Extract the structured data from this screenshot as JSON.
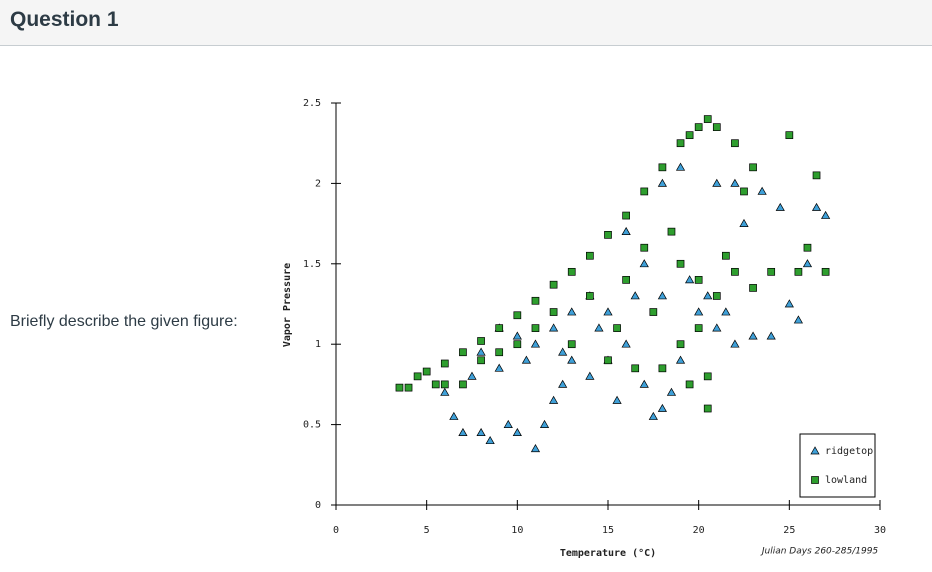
{
  "header": {
    "title": "Question 1"
  },
  "prompt": "Briefly describe the given figure:",
  "chart_data": {
    "type": "scatter",
    "x_label": "Temperature (°C)",
    "y_label": "Vapor Pressure",
    "annotation": "Julian Days 260-285/1995",
    "xlim": [
      0,
      30
    ],
    "ylim": [
      0,
      2.5
    ],
    "xticks": [
      0,
      5,
      10,
      15,
      20,
      25,
      30
    ],
    "yticks": [
      0,
      0.5,
      1,
      1.5,
      2,
      2.5
    ],
    "legend": "lower right",
    "series": [
      {
        "name": "ridgetop",
        "color": "#3fa0d8",
        "marker": "triangle",
        "x": [
          6.5,
          7,
          8,
          8.5,
          9.5,
          10,
          11,
          11.5,
          12,
          12.5,
          6,
          7.5,
          9,
          10.5,
          13,
          14,
          15,
          15.5,
          16,
          17,
          17.5,
          18,
          18.5,
          19,
          20,
          21,
          22,
          23,
          24,
          25,
          25.5,
          26,
          26.5,
          27,
          24.5,
          22.5,
          23.5,
          21,
          22,
          19,
          18,
          16,
          17,
          14,
          13,
          12,
          11,
          15,
          16.5,
          18,
          19.5,
          20.5,
          21.5,
          14.5,
          12.5,
          10,
          8,
          9
        ],
        "y": [
          0.55,
          0.45,
          0.45,
          0.4,
          0.5,
          0.45,
          0.35,
          0.5,
          0.65,
          0.75,
          0.7,
          0.8,
          0.85,
          0.9,
          0.9,
          0.8,
          0.9,
          0.65,
          1.0,
          0.75,
          0.55,
          0.6,
          0.7,
          0.9,
          1.2,
          1.1,
          1.0,
          1.05,
          1.05,
          1.25,
          1.15,
          1.5,
          1.85,
          1.8,
          1.85,
          1.75,
          1.95,
          2.0,
          2.0,
          2.1,
          2.0,
          1.7,
          1.5,
          1.3,
          1.2,
          1.1,
          1.0,
          1.2,
          1.3,
          1.3,
          1.4,
          1.3,
          1.2,
          1.1,
          0.95,
          1.05,
          0.95,
          1.1
        ]
      },
      {
        "name": "lowland",
        "color": "#2e9e2e",
        "marker": "square",
        "x": [
          3.5,
          4,
          4.5,
          5,
          6,
          7,
          8,
          9,
          10,
          11,
          12,
          13,
          14,
          15,
          16,
          17,
          18,
          19,
          19.5,
          20,
          20.5,
          21,
          22,
          23,
          25,
          26.5,
          27,
          26,
          25.5,
          24,
          23,
          22,
          21,
          20,
          20.5,
          20.5,
          19.5,
          18,
          16.5,
          15,
          13,
          12,
          11,
          10,
          9,
          8,
          7,
          6,
          5.5,
          14,
          16,
          17,
          18.5,
          19,
          20,
          22.5,
          17.5,
          15.5,
          19,
          21.5
        ],
        "y": [
          0.73,
          0.73,
          0.8,
          0.83,
          0.88,
          0.95,
          1.02,
          1.1,
          1.18,
          1.27,
          1.37,
          1.45,
          1.55,
          1.68,
          1.8,
          1.95,
          2.1,
          2.25,
          2.3,
          2.35,
          2.4,
          2.35,
          2.25,
          2.1,
          2.3,
          2.05,
          1.45,
          1.6,
          1.45,
          1.45,
          1.35,
          1.45,
          1.3,
          1.1,
          0.8,
          0.6,
          0.75,
          0.85,
          0.85,
          0.9,
          1.0,
          1.2,
          1.1,
          1.0,
          0.95,
          0.9,
          0.75,
          0.75,
          0.75,
          1.3,
          1.4,
          1.6,
          1.7,
          1.5,
          1.4,
          1.95,
          1.2,
          1.1,
          1.0,
          1.55
        ]
      }
    ]
  }
}
